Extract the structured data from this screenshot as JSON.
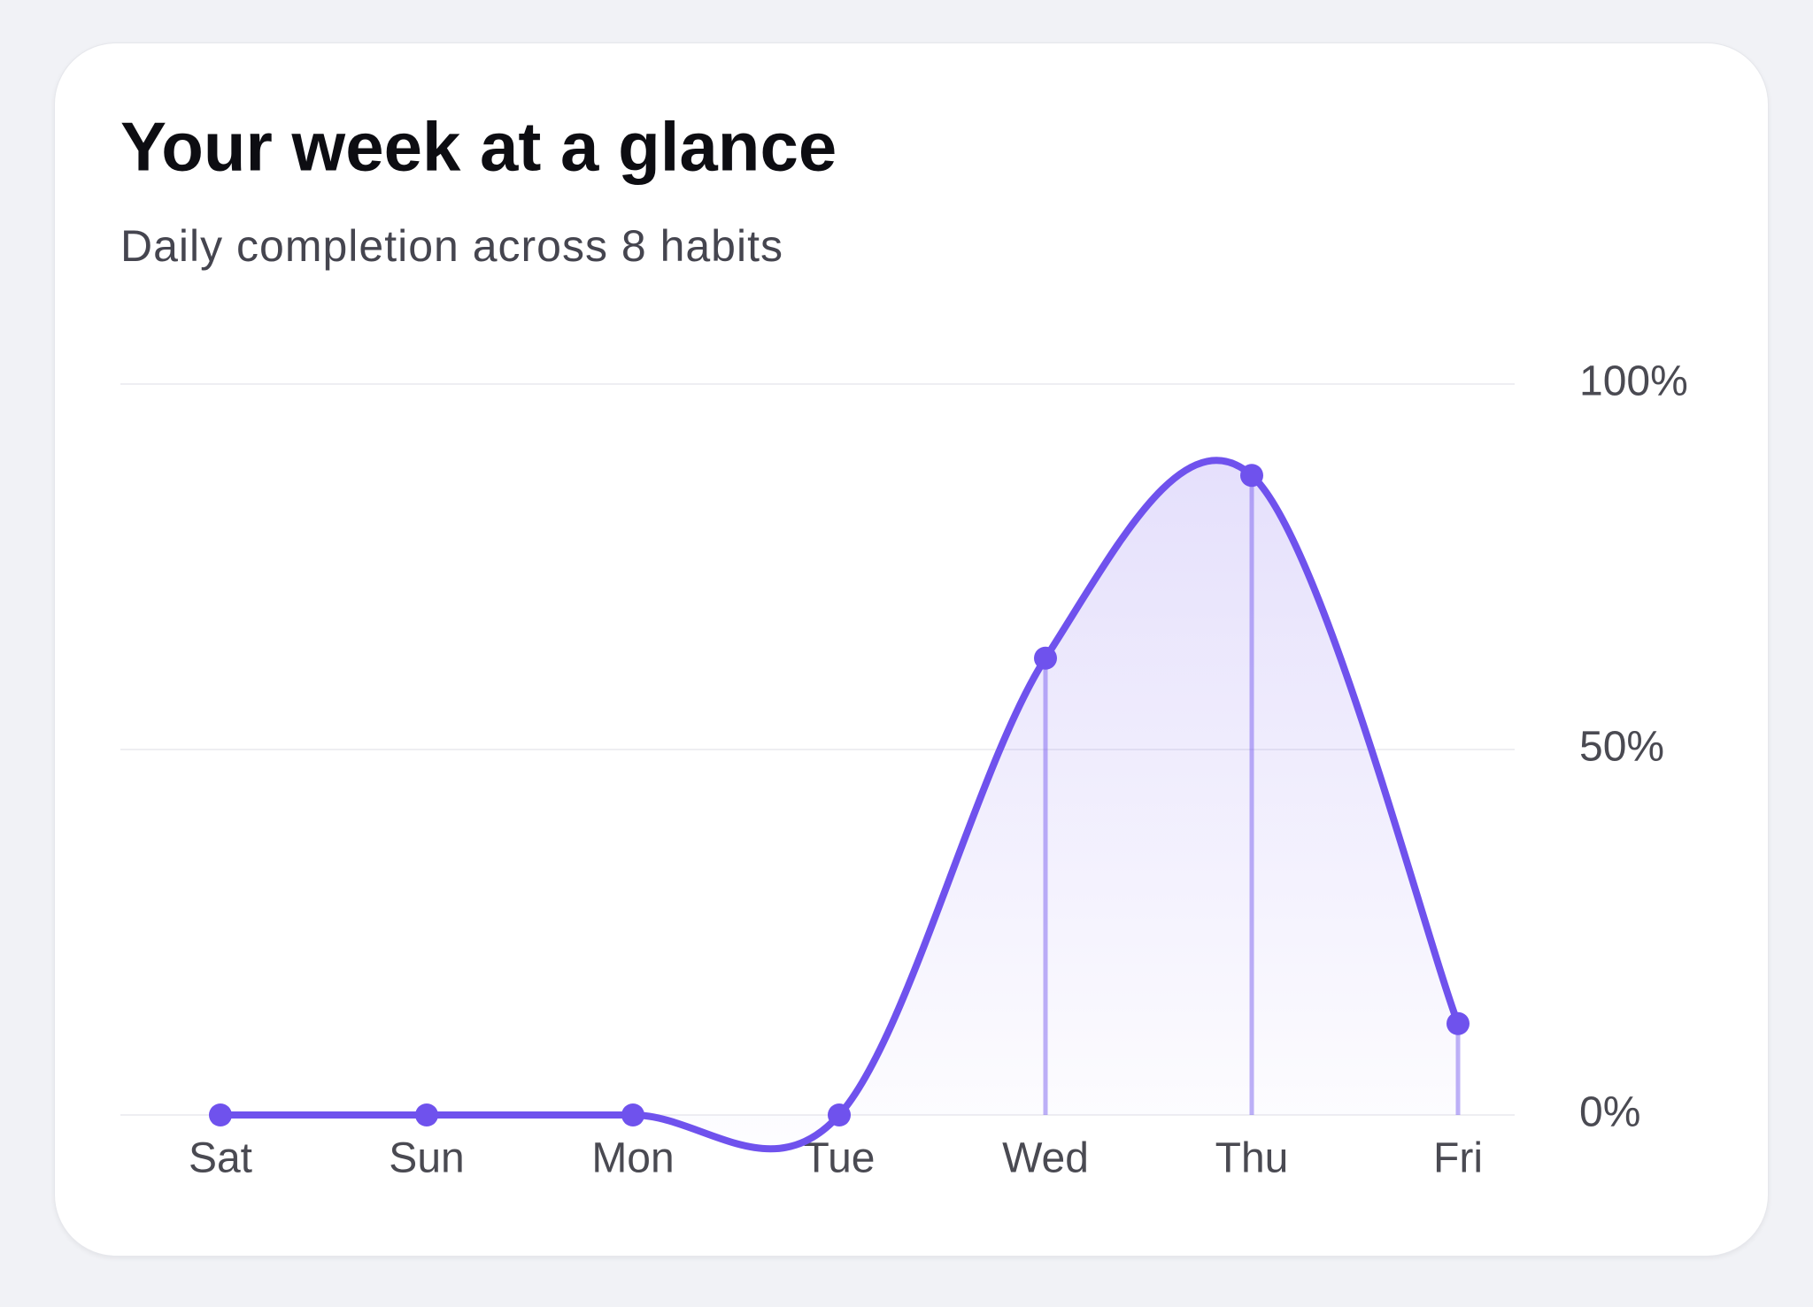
{
  "chart_data": {
    "type": "line",
    "title": "Your week at a glance",
    "subtitle": "Daily completion across 8 habits",
    "categories": [
      "Sat",
      "Sun",
      "Mon",
      "Tue",
      "Wed",
      "Thu",
      "Fri"
    ],
    "series": [
      {
        "name": "Completion",
        "color": "#6f52ed",
        "values": [
          0,
          0,
          0,
          0,
          62.5,
          87.5,
          12.5
        ]
      }
    ],
    "ylim": [
      0,
      100
    ],
    "yticks": [
      {
        "value": 0,
        "label": "0%"
      },
      {
        "value": 50,
        "label": "50%"
      },
      {
        "value": 100,
        "label": "100%"
      }
    ],
    "grid": true
  }
}
